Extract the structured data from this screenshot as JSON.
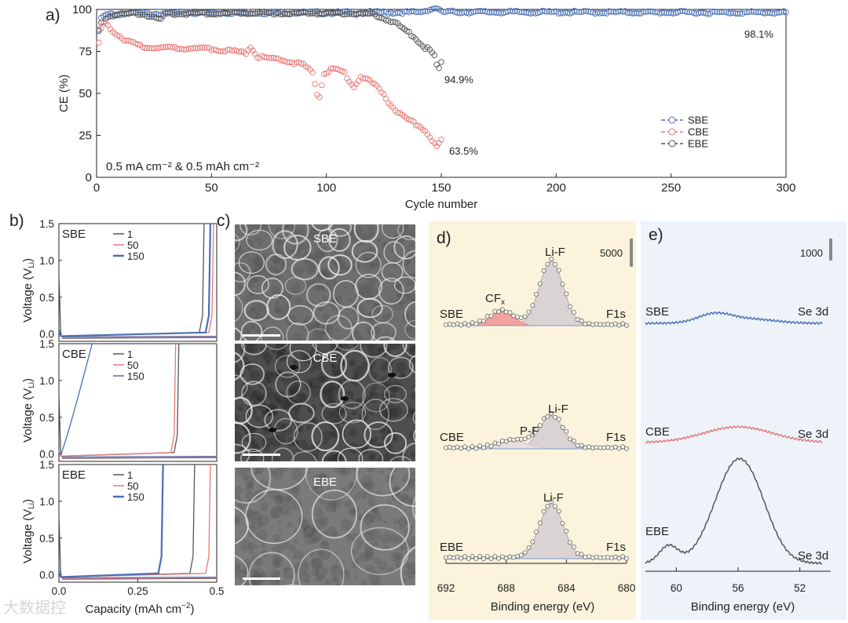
{
  "panels": {
    "a": "a)",
    "b": "b)",
    "c": "c)",
    "d": "d)",
    "e": "e)"
  },
  "chart_data": [
    {
      "id": "a",
      "type": "scatter",
      "title": "",
      "xlabel": "Cycle number",
      "ylabel": "CE (%)",
      "xlim": [
        0,
        300
      ],
      "ylim": [
        0,
        100
      ],
      "xticks": [
        "0",
        "50",
        "100",
        "150",
        "200",
        "250",
        "300"
      ],
      "yticks": [
        "0",
        "25",
        "50",
        "75",
        "100"
      ],
      "condition": "0.5 mA cm⁻² & 0.5 mAh cm⁻²",
      "legend": [
        "SBE",
        "CBE",
        "EBE"
      ],
      "series": [
        {
          "name": "SBE",
          "color": "#4a6fb5",
          "final_label": "98.1%",
          "points": [
            [
              1,
              88
            ],
            [
              2,
              95
            ],
            [
              4,
              97
            ],
            [
              10,
              97.5
            ],
            [
              30,
              97.8
            ],
            [
              60,
              98
            ],
            [
              100,
              98.1
            ],
            [
              140,
              98.2
            ],
            [
              148,
              101
            ],
            [
              150,
              98.5
            ],
            [
              200,
              98.3
            ],
            [
              250,
              98.2
            ],
            [
              300,
              98.1
            ]
          ]
        },
        {
          "name": "CBE",
          "color": "#e87878",
          "final_label": "63.5%",
          "points": [
            [
              1,
              80
            ],
            [
              2,
              88
            ],
            [
              3,
              92
            ],
            [
              5,
              90
            ],
            [
              8,
              86
            ],
            [
              12,
              82
            ],
            [
              20,
              78
            ],
            [
              30,
              77
            ],
            [
              40,
              77
            ],
            [
              50,
              76.5
            ],
            [
              60,
              75
            ],
            [
              65,
              74
            ],
            [
              67,
              78
            ],
            [
              70,
              72
            ],
            [
              80,
              70
            ],
            [
              90,
              67
            ],
            [
              94,
              62
            ],
            [
              96,
              50
            ],
            [
              97,
              48
            ],
            [
              98,
              55
            ],
            [
              99,
              62
            ],
            [
              102,
              64
            ],
            [
              105,
              64
            ],
            [
              108,
              62
            ],
            [
              110,
              57
            ],
            [
              112,
              54
            ],
            [
              115,
              60
            ],
            [
              118,
              58
            ],
            [
              120,
              56
            ],
            [
              122,
              54
            ],
            [
              125,
              50
            ],
            [
              127,
              45
            ],
            [
              130,
              40
            ],
            [
              133,
              37
            ],
            [
              136,
              34
            ],
            [
              140,
              31
            ],
            [
              143,
              28
            ],
            [
              145,
              24
            ],
            [
              147,
              20
            ],
            [
              148,
              18
            ],
            [
              150,
              22
            ]
          ]
        },
        {
          "name": "EBE",
          "color": "#555555",
          "final_label": "94.9%",
          "points": [
            [
              1,
              87
            ],
            [
              2,
              92
            ],
            [
              5,
              96
            ],
            [
              10,
              97
            ],
            [
              20,
              97.5
            ],
            [
              28,
              94
            ],
            [
              30,
              97.5
            ],
            [
              60,
              97.8
            ],
            [
              100,
              97.8
            ],
            [
              120,
              97
            ],
            [
              125,
              95
            ],
            [
              128,
              93
            ],
            [
              130,
              92
            ],
            [
              132,
              90
            ],
            [
              135,
              87
            ],
            [
              138,
              84
            ],
            [
              140,
              81
            ],
            [
              142,
              78
            ],
            [
              145,
              76
            ],
            [
              147,
              72
            ],
            [
              148,
              67
            ],
            [
              149,
              65
            ],
            [
              150,
              68
            ]
          ]
        }
      ]
    },
    {
      "id": "b",
      "type": "line",
      "xlabel": "Capacity (mAh cm⁻²)",
      "ylabel": "Voltage (Vₗᵢ)",
      "xlim": [
        0,
        0.5
      ],
      "ylim": [
        -0.1,
        1.5
      ],
      "xticks": [
        "0.0",
        "0.25",
        "0.5"
      ],
      "yticks": [
        "0.0",
        "0.5",
        "1.0",
        "1.5"
      ],
      "subplots": [
        {
          "name": "SBE",
          "legend": [
            "1",
            "50",
            "150"
          ],
          "cycle_end_capacity": [
            0.46,
            0.49,
            0.48
          ]
        },
        {
          "name": "CBE",
          "legend": [
            "1",
            "50",
            "150"
          ],
          "cycle_end_capacity": [
            0.38,
            0.37,
            0.11
          ]
        },
        {
          "name": "EBE",
          "legend": [
            "1",
            "50",
            "150"
          ],
          "cycle_end_capacity": [
            0.43,
            0.48,
            0.33
          ]
        }
      ],
      "colors": [
        "#555555",
        "#e87878",
        "#4a6fb5"
      ]
    },
    {
      "id": "d",
      "type": "line",
      "title": "F1s",
      "xlabel": "Binding energy (eV)",
      "xlim": [
        692,
        680
      ],
      "xticks": [
        "692",
        "688",
        "684",
        "680"
      ],
      "scale_label": "5000",
      "spectra": [
        {
          "name": "SBE",
          "region": "F1s",
          "peaks": [
            "CFₓ",
            "Li-F"
          ]
        },
        {
          "name": "CBE",
          "region": "F1s",
          "peaks": [
            "P-F",
            "Li-F"
          ]
        },
        {
          "name": "EBE",
          "region": "F1s",
          "peaks": [
            "Li-F"
          ]
        }
      ]
    },
    {
      "id": "e",
      "type": "line",
      "xlabel": "Binding energy (eV)",
      "xlim": [
        62,
        50
      ],
      "xticks": [
        "60",
        "56",
        "52"
      ],
      "scale_label": "1000",
      "spectra": [
        {
          "name": "SBE",
          "region": "Se 3d",
          "color": "#4a6fb5"
        },
        {
          "name": "CBE",
          "region": "Se 3d",
          "color": "#e87878"
        },
        {
          "name": "EBE",
          "region": "Se 3d",
          "color": "#555555"
        }
      ]
    }
  ],
  "sem": [
    {
      "name": "SBE"
    },
    {
      "name": "CBE"
    },
    {
      "name": "EBE"
    }
  ],
  "text": {
    "b_part1": "Capacity (mAh cm",
    "b_part2": "−2",
    "b_part3": ")",
    "li_sub": "Li",
    "voltage": "Voltage (V",
    "cf": "CF",
    "cf_sub": "x",
    "watermark": "大数据控"
  }
}
